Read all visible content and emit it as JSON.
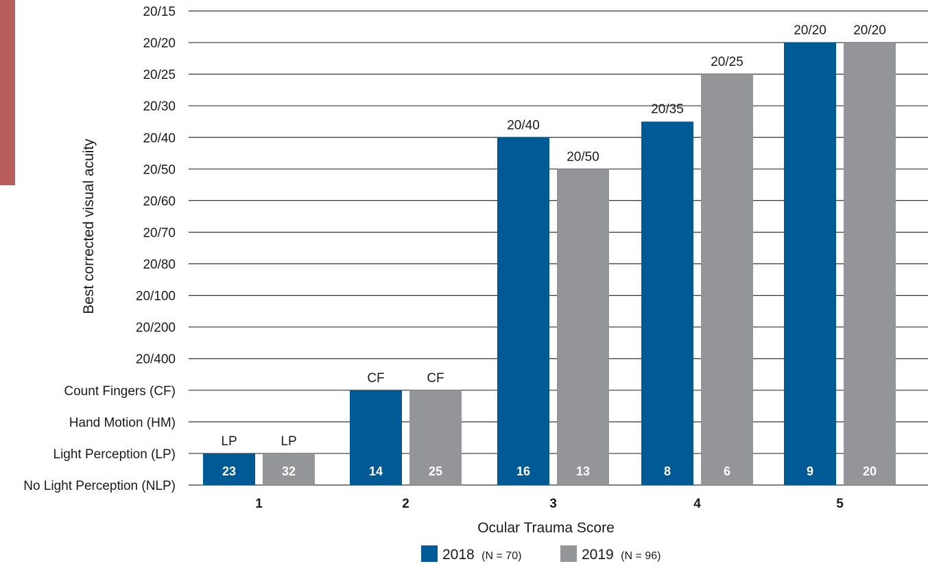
{
  "colors": {
    "accent_strip": "#b85c5c",
    "series_2018": "#005a96",
    "series_2019": "#939598",
    "grid": "#333333",
    "text": "#1a1a1a"
  },
  "chart_data": {
    "type": "bar",
    "xlabel": "Ocular Trauma Score",
    "ylabel": "Best corrected visual acuity",
    "categories": [
      "1",
      "2",
      "3",
      "4",
      "5"
    ],
    "y_levels": [
      "No Light Perception (NLP)",
      "Light Perception (LP)",
      "Hand Motion (HM)",
      "Count Fingers (CF)",
      "20/400",
      "20/200",
      "20/100",
      "20/80",
      "20/70",
      "20/60",
      "20/50",
      "20/40",
      "20/30",
      "20/25",
      "20/20",
      "20/15"
    ],
    "grid": true,
    "legend_position": "bottom",
    "series": [
      {
        "name": "2018",
        "n_label": "(N = 70)",
        "color": "#005a96",
        "values": [
          "Light Perception (LP)",
          "Count Fingers (CF)",
          "20/40",
          "20/35",
          "20/20"
        ],
        "level_positions": [
          1,
          3,
          11,
          11.5,
          14
        ],
        "top_labels": [
          "LP",
          "CF",
          "20/40",
          "20/35",
          "20/20"
        ],
        "counts": [
          "23",
          "14",
          "16",
          "8",
          "9"
        ]
      },
      {
        "name": "2019",
        "n_label": "(N = 96)",
        "color": "#939598",
        "values": [
          "Light Perception (LP)",
          "Count Fingers (CF)",
          "20/50",
          "20/25",
          "20/20"
        ],
        "level_positions": [
          1,
          3,
          10,
          13,
          14
        ],
        "top_labels": [
          "LP",
          "CF",
          "20/50",
          "20/25",
          "20/20"
        ],
        "counts": [
          "32",
          "25",
          "13",
          "6",
          "20"
        ]
      }
    ]
  }
}
